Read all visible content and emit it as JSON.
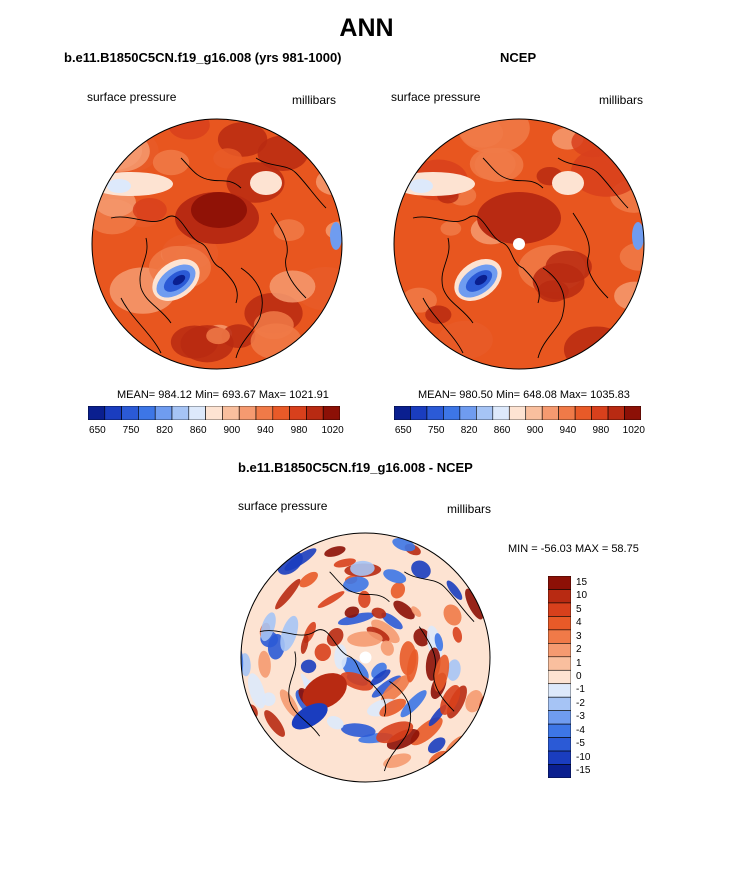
{
  "page": {
    "title": "ANN"
  },
  "panels": [
    {
      "id": "model",
      "title": "b.e11.B1850C5CN.f19_g16.008 (yrs 981-1000)",
      "variable": "surface pressure",
      "units": "millibars",
      "stats": "MEAN= 984.12  Min= 693.67  Max= 1021.91",
      "pole_marker": false
    },
    {
      "id": "obs",
      "title": "NCEP",
      "variable": "surface pressure",
      "units": "millibars",
      "stats": "MEAN= 980.50  Min= 648.08  Max= 1035.83",
      "pole_marker": true
    }
  ],
  "colorbar_levels": {
    "colors": [
      "#0a1f8f",
      "#1a3dbf",
      "#2b5ad6",
      "#3d76e6",
      "#6f9cf0",
      "#a6c4f5",
      "#dde9fb",
      "#fde3d2",
      "#f9bf9e",
      "#f59a70",
      "#f07a48",
      "#e85a28",
      "#d8401c",
      "#b82a12",
      "#8c1006"
    ],
    "tick_labels": [
      "650",
      "750",
      "820",
      "860",
      "900",
      "940",
      "980",
      "1020"
    ]
  },
  "difference": {
    "title": "b.e11.B1850C5CN.f19_g16.008 - NCEP",
    "variable": "surface pressure",
    "units": "millibars",
    "minmax": "MIN = -56.03 MAX =  58.75",
    "colors": [
      "#8c1006",
      "#b82a12",
      "#d8401c",
      "#e85a28",
      "#f07a48",
      "#f59a70",
      "#f9bf9e",
      "#fde3d2",
      "#dde9fb",
      "#a6c4f5",
      "#6f9cf0",
      "#3d76e6",
      "#2b5ad6",
      "#1a3dbf",
      "#0a1f8f"
    ],
    "tick_labels": [
      "15",
      "10",
      "5",
      "4",
      "3",
      "2",
      "1",
      "0",
      "-1",
      "-2",
      "-3",
      "-4",
      "-5",
      "-10",
      "-15"
    ]
  }
}
